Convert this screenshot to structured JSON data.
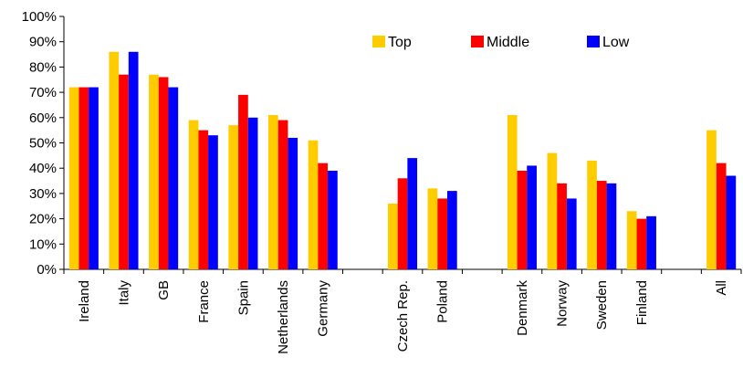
{
  "chart_data": {
    "type": "bar",
    "categories": [
      "Ireland",
      "Italy",
      "GB",
      "France",
      "Spain",
      "Netherlands",
      "Germany",
      "Czech Rep.",
      "Poland",
      "Denmark",
      "Norway",
      "Sweden",
      "Finland",
      "All"
    ],
    "series": [
      {
        "name": "Top",
        "color": "#FFCC00",
        "values": [
          72,
          86,
          77,
          59,
          57,
          61,
          51,
          26,
          32,
          61,
          46,
          43,
          23,
          55
        ]
      },
      {
        "name": "Middle",
        "color": "#FF0000",
        "values": [
          72,
          77,
          76,
          55,
          69,
          59,
          42,
          36,
          28,
          39,
          34,
          35,
          20,
          42
        ]
      },
      {
        "name": "Low",
        "color": "#0000FF",
        "values": [
          72,
          86,
          72,
          53,
          60,
          52,
          39,
          44,
          31,
          41,
          28,
          34,
          21,
          37
        ]
      }
    ],
    "ylim": [
      0,
      100
    ],
    "yticks": [
      "0%",
      "10%",
      "20%",
      "30%",
      "40%",
      "50%",
      "60%",
      "70%",
      "80%",
      "90%",
      "100%"
    ],
    "grid": false,
    "legend_position": "top-right",
    "title": "",
    "xlabel": "",
    "ylabel": ""
  }
}
